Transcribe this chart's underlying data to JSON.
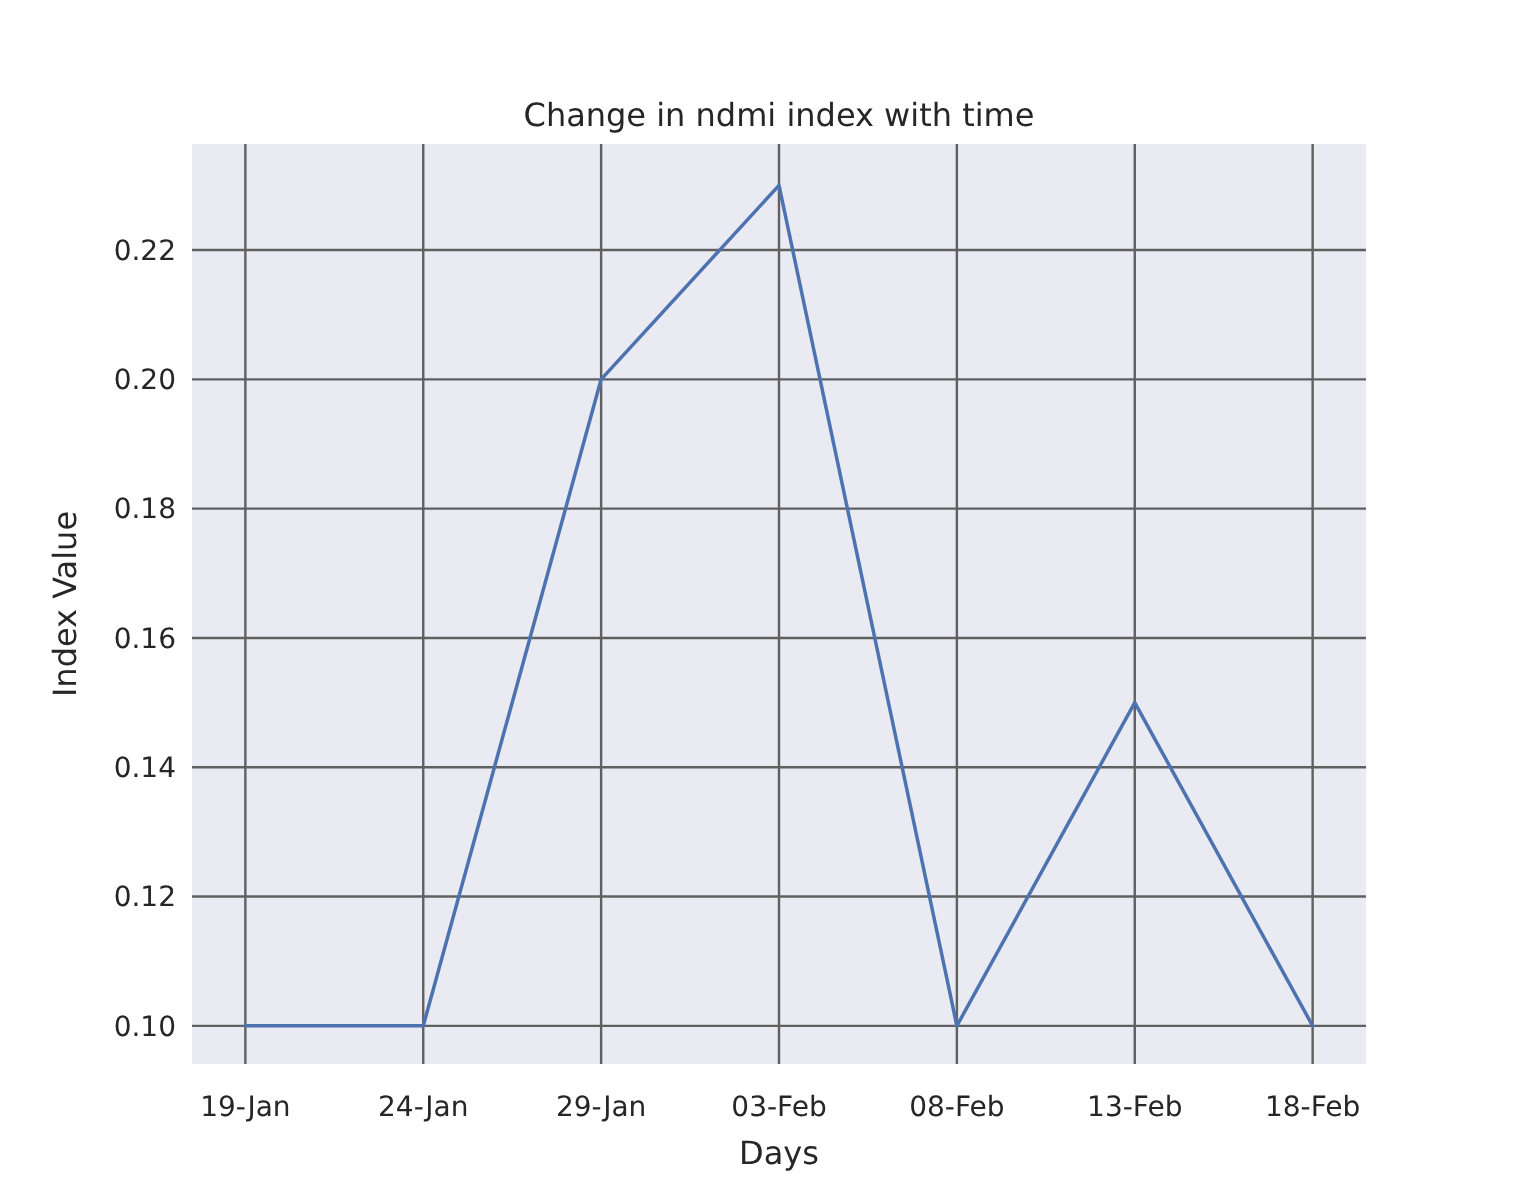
{
  "chart_data": {
    "type": "line",
    "title": "Change in ndmi index with time",
    "xlabel": "Days",
    "ylabel": "Index Value",
    "categories": [
      "19-Jan",
      "24-Jan",
      "29-Jan",
      "03-Feb",
      "08-Feb",
      "13-Feb",
      "18-Feb"
    ],
    "series": [
      {
        "color": "#4c72b0",
        "values": [
          0.1,
          0.1,
          0.2,
          0.23,
          0.1,
          0.15,
          0.1
        ]
      }
    ],
    "ylim": [
      0.0941,
      0.2364
    ],
    "yticks": [
      {
        "value": 0.1,
        "label": "0.10"
      },
      {
        "value": 0.12,
        "label": "0.12"
      },
      {
        "value": 0.14,
        "label": "0.14"
      },
      {
        "value": 0.16,
        "label": "0.16"
      },
      {
        "value": 0.18,
        "label": "0.18"
      },
      {
        "value": 0.2,
        "label": "0.20"
      },
      {
        "value": 0.22,
        "label": "0.22"
      }
    ],
    "grid": true,
    "marker": "none",
    "line_style": "solid"
  }
}
